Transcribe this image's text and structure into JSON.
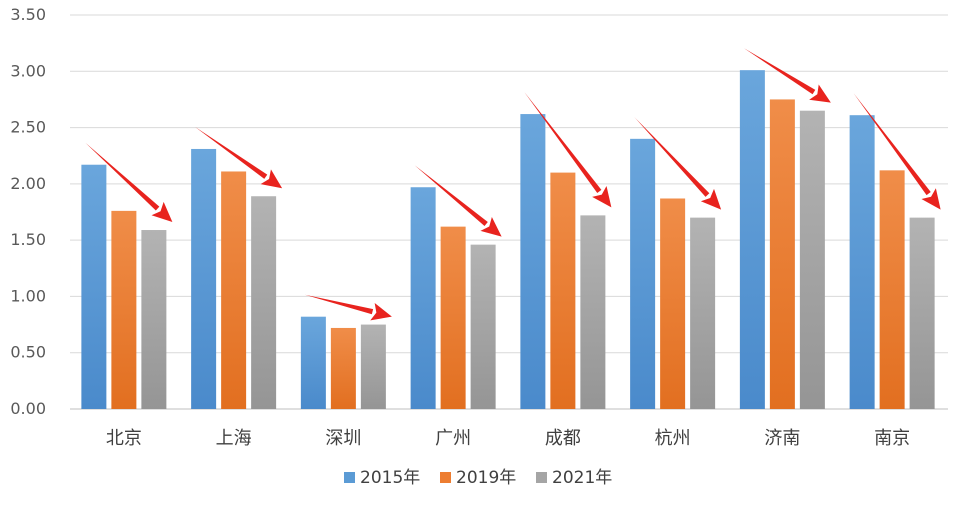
{
  "chart_data": {
    "type": "bar",
    "categories": [
      "北京",
      "上海",
      "深圳",
      "广州",
      "成都",
      "杭州",
      "济南",
      "南京"
    ],
    "series": [
      {
        "name": "2015年",
        "color": "#5B9BD5",
        "values": [
          2.17,
          2.31,
          0.82,
          1.97,
          2.62,
          2.4,
          3.01,
          2.61
        ]
      },
      {
        "name": "2019年",
        "color": "#ED7D31",
        "values": [
          1.76,
          2.11,
          0.72,
          1.62,
          2.1,
          1.87,
          2.75,
          2.12
        ]
      },
      {
        "name": "2021年",
        "color": "#A5A5A5",
        "values": [
          1.59,
          1.89,
          0.75,
          1.46,
          1.72,
          1.7,
          2.65,
          1.7
        ]
      }
    ],
    "ylim": [
      0,
      3.5
    ],
    "yticks": [
      "0.00",
      "0.50",
      "1.00",
      "1.50",
      "2.00",
      "2.50",
      "3.00",
      "3.50"
    ],
    "grid": true,
    "legend": "bottom",
    "annotations": {
      "type": "red downward-trend arrows",
      "color": "#E8231E"
    }
  }
}
